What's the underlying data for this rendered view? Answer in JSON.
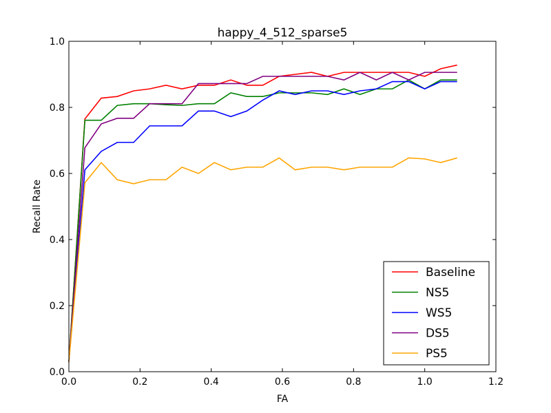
{
  "chart_data": {
    "type": "line",
    "title": "happy_4_512_sparse5",
    "xlabel": "FA",
    "ylabel": "Recall Rate",
    "xlim": [
      0.0,
      1.2
    ],
    "ylim": [
      0.0,
      1.0
    ],
    "xticks": [
      "0.0",
      "0.2",
      "0.4",
      "0.6",
      "0.8",
      "1.0",
      "1.2"
    ],
    "yticks": [
      "0.0",
      "0.2",
      "0.4",
      "0.6",
      "0.8",
      "1.0"
    ],
    "legend_position": "bottom-right",
    "x": [
      0.0,
      0.045,
      0.091,
      0.136,
      0.182,
      0.227,
      0.273,
      0.318,
      0.364,
      0.409,
      0.455,
      0.5,
      0.545,
      0.591,
      0.636,
      0.682,
      0.727,
      0.773,
      0.818,
      0.864,
      0.909,
      0.955,
      1.0,
      1.045,
      1.091
    ],
    "series": [
      {
        "name": "Baseline",
        "color": "#ff0000",
        "values": [
          0.03,
          0.765,
          0.828,
          0.833,
          0.85,
          0.856,
          0.867,
          0.856,
          0.867,
          0.867,
          0.883,
          0.867,
          0.867,
          0.894,
          0.9,
          0.906,
          0.894,
          0.906,
          0.906,
          0.906,
          0.906,
          0.906,
          0.894,
          0.917,
          0.928
        ]
      },
      {
        "name": "NS5",
        "color": "#008000",
        "values": [
          0.03,
          0.761,
          0.761,
          0.806,
          0.811,
          0.811,
          0.808,
          0.806,
          0.811,
          0.811,
          0.844,
          0.833,
          0.833,
          0.844,
          0.844,
          0.844,
          0.839,
          0.856,
          0.839,
          0.856,
          0.856,
          0.883,
          0.856,
          0.883,
          0.883
        ]
      },
      {
        "name": "WS5",
        "color": "#0000ff",
        "values": [
          0.03,
          0.611,
          0.667,
          0.694,
          0.694,
          0.744,
          0.744,
          0.744,
          0.789,
          0.789,
          0.772,
          0.789,
          0.822,
          0.85,
          0.839,
          0.85,
          0.85,
          0.839,
          0.85,
          0.856,
          0.878,
          0.878,
          0.856,
          0.878,
          0.878
        ]
      },
      {
        "name": "DS5",
        "color": "#800080",
        "values": [
          0.03,
          0.678,
          0.75,
          0.767,
          0.767,
          0.811,
          0.811,
          0.811,
          0.872,
          0.872,
          0.872,
          0.872,
          0.894,
          0.894,
          0.894,
          0.894,
          0.894,
          0.883,
          0.906,
          0.883,
          0.906,
          0.883,
          0.906,
          0.906,
          0.906
        ]
      },
      {
        "name": "PS5",
        "color": "#ffa500",
        "values": [
          0.03,
          0.572,
          0.633,
          0.581,
          0.569,
          0.581,
          0.581,
          0.619,
          0.6,
          0.633,
          0.611,
          0.619,
          0.619,
          0.647,
          0.611,
          0.619,
          0.619,
          0.611,
          0.619,
          0.619,
          0.619,
          0.647,
          0.644,
          0.633,
          0.647
        ]
      }
    ]
  }
}
